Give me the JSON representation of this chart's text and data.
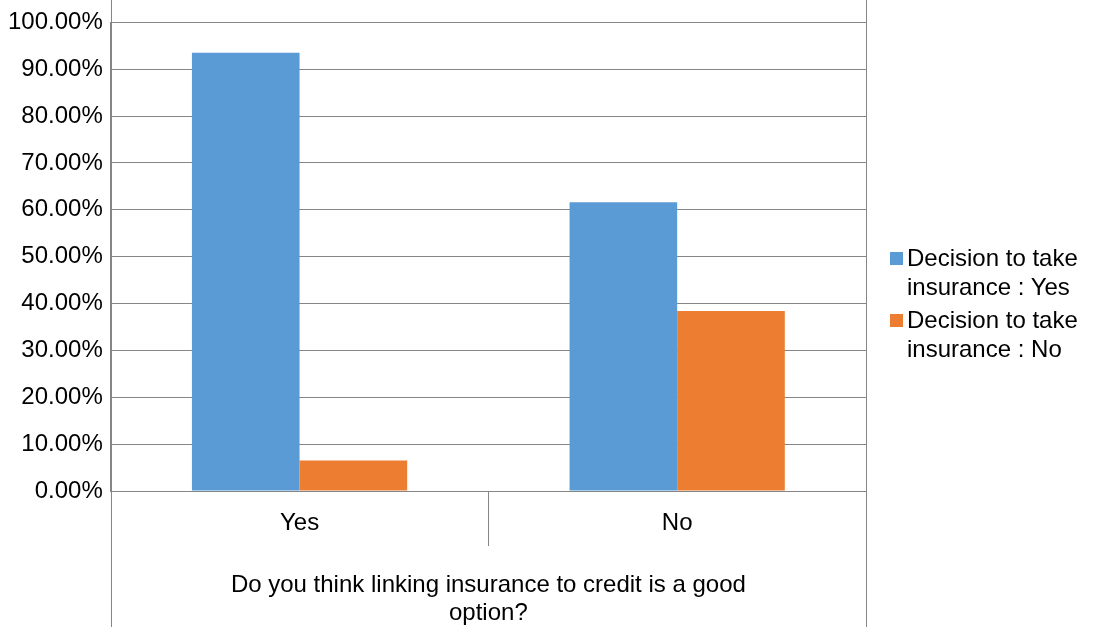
{
  "chart_data": {
    "type": "bar",
    "xlabel": "Do you think linking insurance to credit is a good option?",
    "categories": [
      "Yes",
      "No"
    ],
    "series": [
      {
        "name": "Decision to take insurance : Yes",
        "color": "#5b9bd5",
        "values": [
          93.5,
          61.6
        ]
      },
      {
        "name": "Decision to take insurance : No",
        "color": "#ed7d31",
        "values": [
          6.5,
          38.4
        ]
      }
    ],
    "ylim": [
      0,
      100
    ],
    "yticks": [
      {
        "value": 0,
        "label": "0.00%"
      },
      {
        "value": 10,
        "label": "10.00%"
      },
      {
        "value": 20,
        "label": "20.00%"
      },
      {
        "value": 30,
        "label": "30.00%"
      },
      {
        "value": 40,
        "label": "40.00%"
      },
      {
        "value": 50,
        "label": "50.00%"
      },
      {
        "value": 60,
        "label": "60.00%"
      },
      {
        "value": 70,
        "label": "70.00%"
      },
      {
        "value": 80,
        "label": "80.00%"
      },
      {
        "value": 90,
        "label": "90.00%"
      },
      {
        "value": 100,
        "label": "100.00%"
      }
    ],
    "grid": "y",
    "legend": "right"
  }
}
